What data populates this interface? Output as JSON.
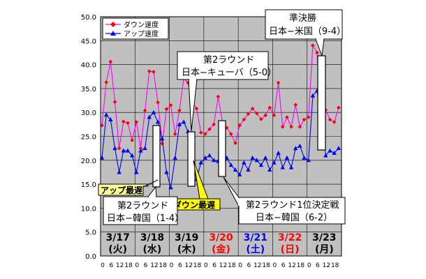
{
  "chart_data": {
    "type": "line",
    "title": "",
    "xlabel": "",
    "ylabel": "",
    "ylim": [
      0,
      50
    ],
    "y_ticks": [
      "0.0",
      "5.0",
      "10.0",
      "15.0",
      "20.0",
      "25.0",
      "30.0",
      "35.0",
      "40.0",
      "45.0",
      "50.0"
    ],
    "x_tick_labels": [
      "0",
      "6",
      "12",
      "18",
      "0",
      "6",
      "12",
      "18",
      "0",
      "6",
      "12",
      "18",
      "0",
      "6",
      "12",
      "18",
      "0",
      "6",
      "12",
      "18",
      "0",
      "6",
      "12",
      "18",
      "0",
      "6",
      "12",
      "18"
    ],
    "grid": true,
    "legend": "top-left",
    "days": [
      {
        "date": "3/17",
        "weekday": "(火)",
        "color": "#000000"
      },
      {
        "date": "3/18",
        "weekday": "(水)",
        "color": "#000000"
      },
      {
        "date": "3/19",
        "weekday": "(木)",
        "color": "#000000"
      },
      {
        "date": "3/20",
        "weekday": "(金)",
        "color": "#ff0000"
      },
      {
        "date": "3/21",
        "weekday": "(土)",
        "color": "#0000ff"
      },
      {
        "date": "3/22",
        "weekday": "(日)",
        "color": "#ff0000"
      },
      {
        "date": "3/23",
        "weekday": "(月)",
        "color": "#000000"
      }
    ],
    "x_hours": [
      0,
      3,
      6,
      9,
      12,
      15,
      18,
      21,
      24,
      27,
      30,
      33,
      36,
      39,
      42,
      45,
      48,
      51,
      54,
      57,
      60,
      63,
      66,
      69,
      72,
      75,
      78,
      81,
      84,
      87,
      90,
      93,
      96,
      99,
      102,
      105,
      108,
      111,
      114,
      117,
      120,
      123,
      126,
      129,
      132,
      135,
      138,
      141,
      144,
      147,
      150,
      153,
      156,
      159,
      162,
      165
    ],
    "series": [
      {
        "name": "ダウン速度",
        "color": "#ff00ff",
        "marker_color": "#ff0000",
        "marker": "diamond",
        "values": [
          27.3,
          36.3,
          40.6,
          32.2,
          22.5,
          28.1,
          27.8,
          24.2,
          28.0,
          22.5,
          30.4,
          38.6,
          38.5,
          32.1,
          23.5,
          30.7,
          31.5,
          25.5,
          30.4,
          37.1,
          36.2,
          32.2,
          30.8,
          25.8,
          25.5,
          26.5,
          27.5,
          33.3,
          28.0,
          26.8,
          25.5,
          23.6,
          27.3,
          28.5,
          29.7,
          30.8,
          29.8,
          28.6,
          29.4,
          31.0,
          29.4,
          36.2,
          27.0,
          29.0,
          27.0,
          31.6,
          27.0,
          28.5,
          29.0,
          44.0,
          42.5,
          27.8,
          30.5,
          28.5,
          28.0,
          31.0
        ]
      },
      {
        "name": "アップ速度",
        "color": "#0000ff",
        "marker_color": "#0000ff",
        "marker": "triangle",
        "values": [
          20.5,
          29.5,
          28.5,
          22.5,
          17.5,
          22.0,
          22.0,
          21.0,
          17.5,
          22.0,
          22.5,
          29.0,
          30.0,
          28.0,
          24.5,
          17.5,
          14.3,
          20.5,
          27.5,
          28.0,
          26.0,
          20.0,
          16.0,
          19.5,
          20.5,
          21.0,
          20.0,
          19.8,
          17.5,
          20.5,
          19.0,
          18.0,
          17.0,
          19.5,
          18.0,
          20.5,
          20.0,
          19.0,
          20.5,
          18.0,
          19.5,
          21.5,
          18.5,
          20.5,
          18.5,
          22.5,
          23.0,
          20.5,
          20.0,
          33.5,
          34.5,
          28.0,
          21.0,
          22.0,
          21.5,
          22.5
        ]
      }
    ],
    "annotations": {
      "up_min": "アップ最遅",
      "down_min": "ダウン最遅",
      "kr1_line1": "第2ラウンド",
      "kr1_line2": "日本−韓国（1-4）",
      "cuba_line1": "第2ラウンド",
      "cuba_line2": "日本−キューバ（5-0）",
      "kr2_line1": "第2ラウンド1位決定戦",
      "kr2_line2": "日本−韓国（6-2）",
      "us_line1": "準決勝",
      "us_line2": "日本−米国（9-4）"
    }
  }
}
